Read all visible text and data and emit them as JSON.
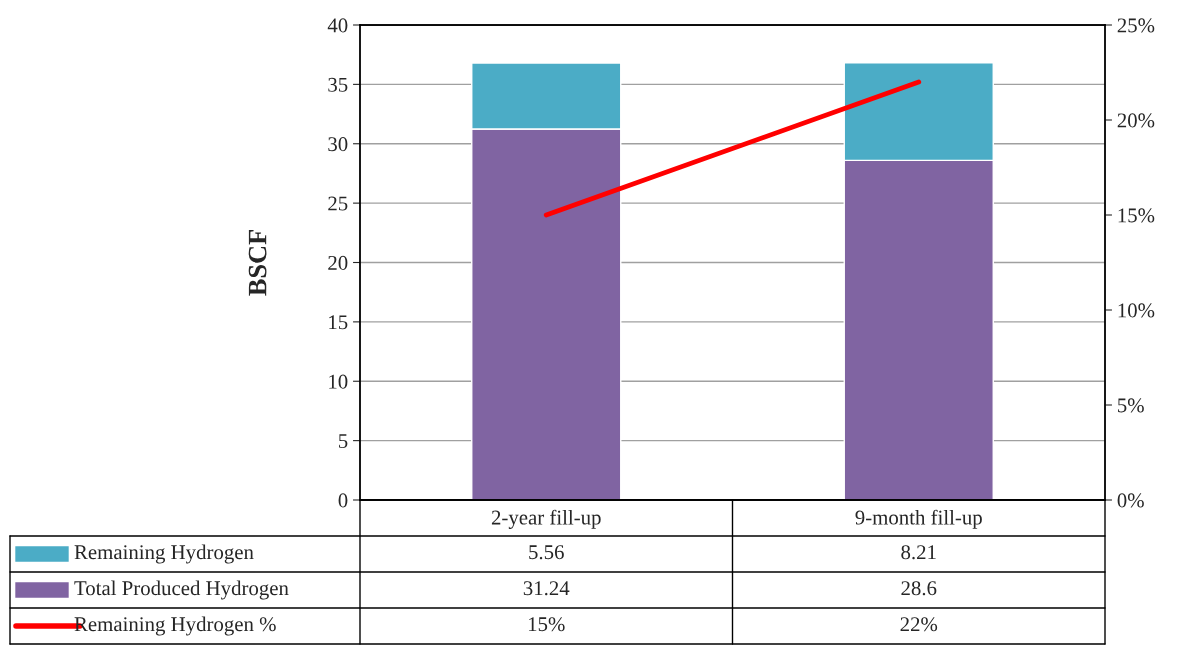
{
  "chart_data": {
    "type": "bar",
    "stacked": true,
    "ylabel": "BSCF",
    "categories": [
      "2-year fill-up",
      "9-month fill-up"
    ],
    "series": [
      {
        "name": "Total Produced Hydrogen",
        "color": "#8064a2",
        "values": [
          31.24,
          28.6
        ],
        "value_labels": [
          "31.24",
          "28.6"
        ]
      },
      {
        "name": "Remaining Hydrogen",
        "color": "#4bacc6",
        "values": [
          5.56,
          8.21
        ],
        "value_labels": [
          "5.56",
          "8.21"
        ]
      },
      {
        "name": "Remaining Hydrogen %",
        "type": "line",
        "axis": "y2",
        "color": "#ff0000",
        "values": [
          15,
          22
        ],
        "value_labels": [
          "15%",
          "22%"
        ]
      }
    ],
    "ylim": [
      0,
      40
    ],
    "yticks": [
      0,
      5,
      10,
      15,
      20,
      25,
      30,
      35,
      40
    ],
    "y2lim": [
      0,
      25
    ],
    "y2ticks": [
      {
        "value": 0,
        "label": "0%"
      },
      {
        "value": 5,
        "label": "5%"
      },
      {
        "value": 10,
        "label": "10%"
      },
      {
        "value": 15,
        "label": "15%"
      },
      {
        "value": 20,
        "label": "20%"
      },
      {
        "value": 25,
        "label": "25%"
      }
    ],
    "grid": "y",
    "legend": "bottom",
    "marker": "none",
    "line_style": "solid"
  }
}
